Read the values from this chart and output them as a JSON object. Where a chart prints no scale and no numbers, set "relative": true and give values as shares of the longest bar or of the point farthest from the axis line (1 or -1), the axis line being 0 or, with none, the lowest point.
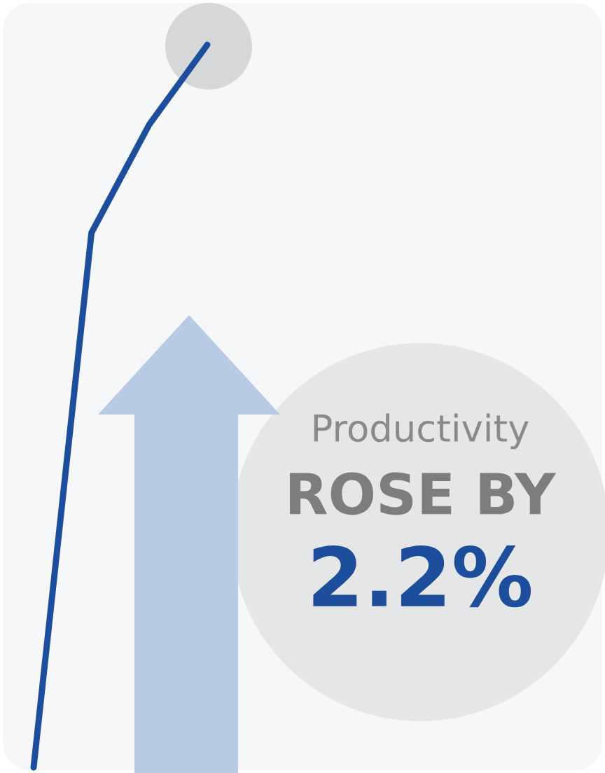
{
  "chart_data": {
    "type": "line",
    "relative": true,
    "categories": [
      null,
      null,
      null,
      null
    ],
    "series": [
      {
        "color": "#1d4e9b",
        "values": [
          0,
          0.74,
          0.89,
          1
        ]
      }
    ],
    "annotations": [
      "Productivity",
      "ROSE BY",
      "2.2%"
    ]
  }
}
